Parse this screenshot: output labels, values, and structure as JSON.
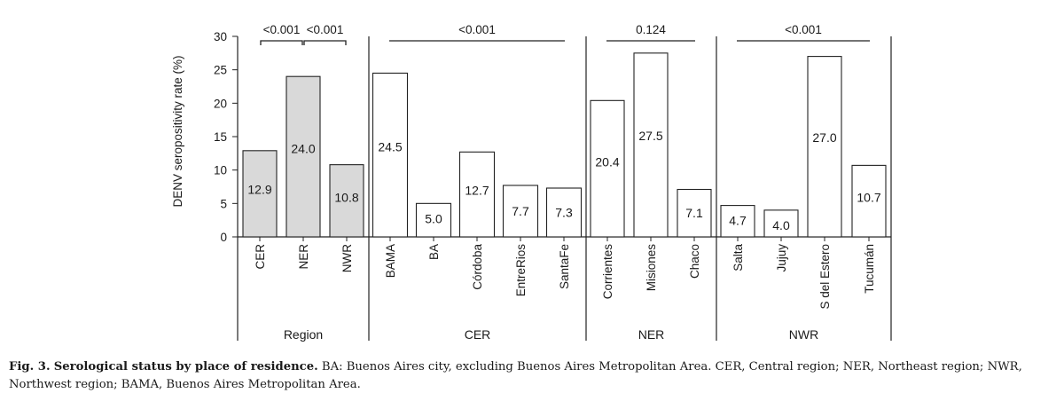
{
  "chart_data": {
    "type": "bar",
    "ylabel": "DENV seropositivity rate (%)",
    "ylim": [
      0,
      30
    ],
    "yticks": [
      0,
      5,
      10,
      15,
      20,
      25,
      30
    ],
    "groups": [
      {
        "name": "Region",
        "bar_color": "#d9d9d9",
        "pvalues": [
          "<0.001",
          "<0.001"
        ],
        "categories": [
          "CER",
          "NER",
          "NWR"
        ],
        "values": [
          12.9,
          24.0,
          10.8
        ],
        "value_labels": [
          "12.9",
          "24.0",
          "10.8"
        ]
      },
      {
        "name": "CER",
        "bar_color": "#ffffff",
        "pvalues": [
          "<0.001"
        ],
        "categories": [
          "BAMA",
          "BA",
          "Córdoba",
          "EntreRios",
          "SantaFe"
        ],
        "values": [
          24.5,
          5.0,
          12.7,
          7.7,
          7.3
        ],
        "value_labels": [
          "24.5",
          "5.0",
          "12.7",
          "7.7",
          "7.3"
        ]
      },
      {
        "name": "NER",
        "bar_color": "#ffffff",
        "pvalues": [
          "0.124"
        ],
        "categories": [
          "Corrientes",
          "Misiones",
          "Chaco"
        ],
        "values": [
          20.4,
          27.5,
          7.1
        ],
        "value_labels": [
          "20.4",
          "27.5",
          "7.1"
        ]
      },
      {
        "name": "NWR",
        "bar_color": "#ffffff",
        "pvalues": [
          "<0.001"
        ],
        "categories": [
          "Salta",
          "Jujuy",
          "S del Estero",
          "Tucumán"
        ],
        "values": [
          4.7,
          4.0,
          27.0,
          10.7
        ],
        "value_labels": [
          "4.7",
          "4.0",
          "27.0",
          "10.7"
        ]
      }
    ]
  },
  "caption": {
    "label": "Fig. 3.",
    "title": "Serological status by place of residence.",
    "text": "BA: Buenos Aires city, excluding Buenos Aires Metropolitan Area. CER, Central region; NER, Northeast region; NWR, Northwest region; BAMA, Buenos Aires Metropolitan Area."
  }
}
